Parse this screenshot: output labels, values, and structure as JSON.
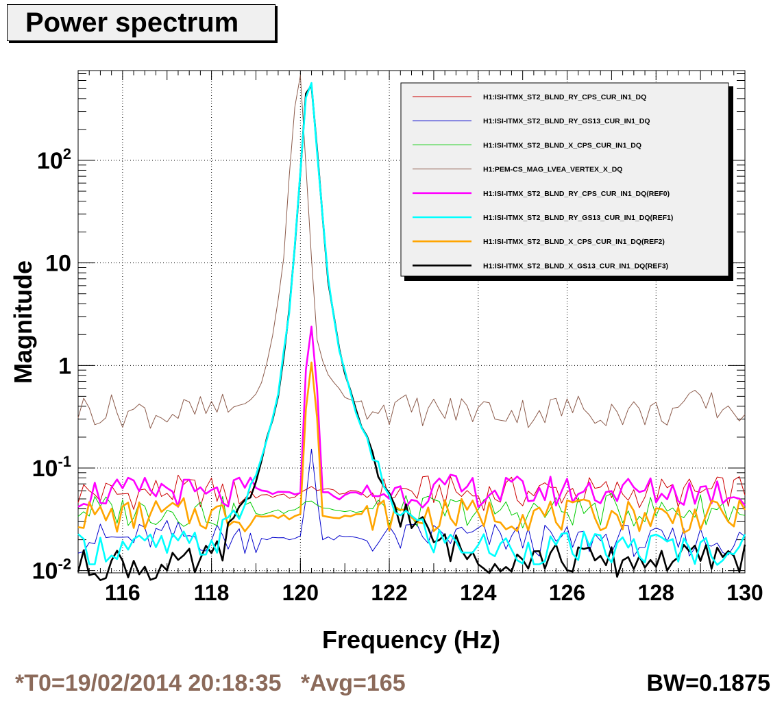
{
  "title": "Power spectrum",
  "footer": {
    "t0": "*T0=19/02/2014 20:18:35",
    "avg": "*Avg=165",
    "bw": "BW=0.1875"
  },
  "chart_data": {
    "type": "line",
    "xlabel": "Frequency (Hz)",
    "ylabel": "Magnitude",
    "xlim": [
      115,
      130
    ],
    "ylim": [
      0.0095,
      750
    ],
    "yscale": "log",
    "grid": true,
    "legend_position": "top-right",
    "xticks": [
      116,
      118,
      120,
      122,
      124,
      126,
      128,
      130
    ],
    "yticks": [
      {
        "value": 0.01,
        "base": "10",
        "exp": "-2"
      },
      {
        "value": 0.1,
        "base": "10",
        "exp": "-1"
      },
      {
        "value": 1,
        "base": "1",
        "exp": ""
      },
      {
        "value": 10,
        "base": "10",
        "exp": ""
      },
      {
        "value": 100,
        "base": "10",
        "exp": "2"
      }
    ],
    "peak_frequency": 120.25,
    "series": [
      {
        "name": "H1:ISI-ITMX_ST2_BLND_RY_CPS_CUR_IN1_DQ",
        "color": "#cc0000",
        "width": 1,
        "x": [
          115,
          116,
          117,
          118,
          119,
          119.8,
          120.1,
          120.25,
          120.5,
          121,
          122,
          123,
          124,
          125,
          126,
          127,
          128,
          129,
          130
        ],
        "y": [
          0.058,
          0.055,
          0.06,
          0.058,
          0.056,
          0.052,
          0.058,
          0.065,
          0.062,
          0.057,
          0.058,
          0.06,
          0.055,
          0.058,
          0.06,
          0.057,
          0.058,
          0.056,
          0.062
        ]
      },
      {
        "name": "H1:ISI-ITMX_ST2_BLND_RY_GS13_CUR_IN1_DQ",
        "color": "#0000cc",
        "width": 1,
        "x": [
          115,
          116,
          117,
          118,
          119,
          119.8,
          120,
          120.15,
          120.25,
          120.35,
          120.5,
          121,
          122,
          123,
          124,
          125,
          126,
          127,
          128,
          129,
          130
        ],
        "y": [
          0.021,
          0.02,
          0.022,
          0.021,
          0.021,
          0.02,
          0.022,
          0.06,
          0.16,
          0.06,
          0.02,
          0.021,
          0.02,
          0.022,
          0.021,
          0.02,
          0.019,
          0.021,
          0.018,
          0.02,
          0.019
        ]
      },
      {
        "name": "H1:ISI-ITMX_ST2_BLND_X_CPS_CUR_IN1_DQ",
        "color": "#00cc00",
        "width": 1,
        "x": [
          115,
          116,
          117,
          118,
          119,
          119.8,
          120.25,
          120.5,
          121,
          122,
          123,
          124,
          125,
          126,
          127,
          128,
          129,
          130
        ],
        "y": [
          0.04,
          0.038,
          0.039,
          0.037,
          0.036,
          0.038,
          0.05,
          0.042,
          0.038,
          0.037,
          0.038,
          0.039,
          0.037,
          0.038,
          0.039,
          0.038,
          0.04,
          0.039
        ]
      },
      {
        "name": "H1:PEM-CS_MAG_LVEA_VERTEX_X_DQ",
        "color": "#8b5a4a",
        "width": 1,
        "x": [
          115,
          116,
          117,
          118,
          118.5,
          119,
          119.3,
          119.6,
          119.85,
          120,
          120.15,
          120.35,
          120.6,
          121,
          121.5,
          122,
          123,
          124,
          125,
          126,
          127,
          128,
          129,
          130
        ],
        "y": [
          0.38,
          0.36,
          0.34,
          0.36,
          0.38,
          0.5,
          1.2,
          8,
          300,
          650,
          60,
          2,
          0.8,
          0.5,
          0.42,
          0.38,
          0.36,
          0.37,
          0.35,
          0.38,
          0.36,
          0.34,
          0.42,
          0.36
        ]
      },
      {
        "name": "H1:ISI-ITMX_ST2_BLND_RY_CPS_CUR_IN1_DQ(REF0)",
        "color": "#ff00ff",
        "width": 2.6,
        "x": [
          115,
          116,
          117,
          118,
          119,
          119.8,
          120,
          120.15,
          120.25,
          120.35,
          120.5,
          120.8,
          121,
          122,
          123,
          124,
          125,
          126,
          127,
          128,
          129,
          130
        ],
        "y": [
          0.058,
          0.056,
          0.062,
          0.05,
          0.06,
          0.055,
          0.06,
          1.5,
          2.4,
          1.0,
          0.06,
          0.05,
          0.055,
          0.058,
          0.06,
          0.06,
          0.058,
          0.06,
          0.06,
          0.058,
          0.06,
          0.058
        ]
      },
      {
        "name": "H1:ISI-ITMX_ST2_BLND_RY_GS13_CUR_IN1_DQ(REF1)",
        "color": "#00ffff",
        "width": 2.6,
        "x": [
          115,
          116,
          117,
          118,
          118.5,
          119,
          119.5,
          119.8,
          120,
          120.1,
          120.25,
          120.4,
          120.6,
          120.9,
          121.3,
          121.7,
          122.2,
          123,
          124,
          125,
          126,
          127,
          128,
          129,
          130
        ],
        "y": [
          0.016,
          0.017,
          0.017,
          0.018,
          0.03,
          0.08,
          0.5,
          5,
          80,
          400,
          550,
          90,
          8,
          1.2,
          0.3,
          0.09,
          0.04,
          0.02,
          0.017,
          0.016,
          0.017,
          0.016,
          0.017,
          0.016,
          0.017
        ]
      },
      {
        "name": "H1:ISI-ITMX_ST2_BLND_X_CPS_CUR_IN1_DQ(REF2)",
        "color": "#ffa500",
        "width": 2.6,
        "x": [
          115,
          116,
          117,
          118,
          119,
          119.8,
          120,
          120.15,
          120.25,
          120.35,
          120.5,
          121,
          122,
          123,
          124,
          125,
          126,
          127,
          128,
          129,
          130
        ],
        "y": [
          0.035,
          0.033,
          0.036,
          0.035,
          0.034,
          0.033,
          0.036,
          0.6,
          1.05,
          0.5,
          0.035,
          0.034,
          0.035,
          0.034,
          0.036,
          0.035,
          0.034,
          0.035,
          0.034,
          0.033,
          0.034
        ]
      },
      {
        "name": "H1:ISI-ITMX_ST2_BLND_X_GS13_CUR_IN1_DQ(REF3)",
        "color": "#000000",
        "width": 2.6,
        "x": [
          115,
          116,
          117,
          118,
          118.5,
          119,
          119.5,
          119.8,
          120,
          120.1,
          120.25,
          120.4,
          120.6,
          120.9,
          121.3,
          121.7,
          122.2,
          123,
          124,
          125,
          126,
          127,
          128,
          129,
          130
        ],
        "y": [
          0.011,
          0.012,
          0.01,
          0.013,
          0.025,
          0.075,
          0.5,
          5,
          80,
          400,
          550,
          90,
          8,
          1.2,
          0.3,
          0.09,
          0.04,
          0.02,
          0.013,
          0.014,
          0.013,
          0.012,
          0.013,
          0.013,
          0.014
        ]
      }
    ]
  }
}
